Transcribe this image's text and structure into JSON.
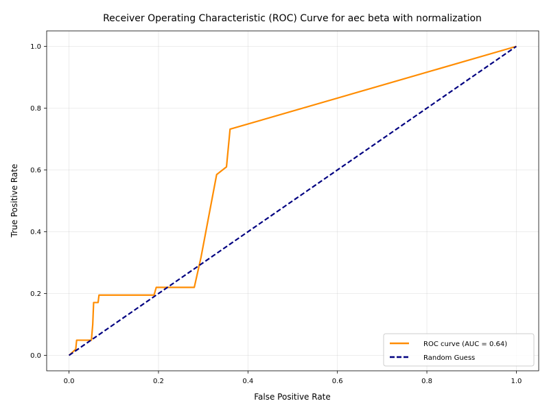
{
  "chart_data": {
    "type": "line",
    "title": "Receiver Operating Characteristic (ROC) Curve for aec beta with normalization",
    "xlabel": "False Positive Rate",
    "ylabel": "True Positive Rate",
    "xlim": [
      -0.05,
      1.05
    ],
    "ylim": [
      -0.05,
      1.05
    ],
    "xticks": [
      "0.0",
      "0.2",
      "0.4",
      "0.6",
      "0.8",
      "1.0"
    ],
    "yticks": [
      "0.0",
      "0.2",
      "0.4",
      "0.6",
      "0.8",
      "1.0"
    ],
    "grid": true,
    "legend_position": "lower-right",
    "series": [
      {
        "name": "ROC curve (AUC = 0.64)",
        "color": "#ff8c00",
        "style": "solid",
        "x": [
          0.0,
          0.015,
          0.017,
          0.05,
          0.053,
          0.055,
          0.065,
          0.067,
          0.19,
          0.195,
          0.28,
          0.295,
          0.33,
          0.352,
          0.36,
          1.0
        ],
        "y": [
          0.0,
          0.02,
          0.049,
          0.049,
          0.1,
          0.171,
          0.171,
          0.195,
          0.195,
          0.22,
          0.22,
          0.317,
          0.585,
          0.61,
          0.732,
          1.0
        ]
      },
      {
        "name": "Random Guess",
        "color": "#000080",
        "style": "dashed",
        "x": [
          0.0,
          1.0
        ],
        "y": [
          0.0,
          1.0
        ]
      }
    ]
  }
}
